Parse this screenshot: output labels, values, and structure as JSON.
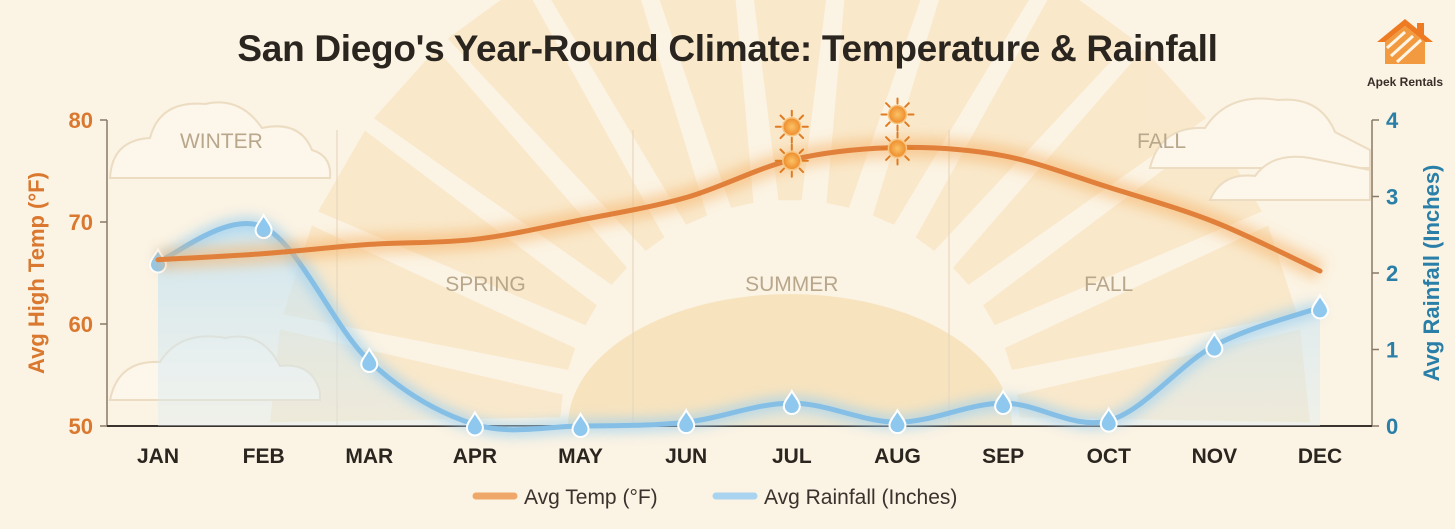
{
  "title": "San Diego's Year-Round Climate: Temperature & Rainfall",
  "brand": {
    "name": "Apek Rentals",
    "logo_icon": "house-roof-icon"
  },
  "colors": {
    "temperature": "#e0803a",
    "rainfall": "#86bfe6",
    "left_axis": "#d9782e",
    "right_axis": "#2a7fa8",
    "background": "#fbf3e3"
  },
  "chart_data": {
    "type": "line",
    "title": "San Diego's Year-Round Climate: Temperature & Rainfall",
    "categories": [
      "JAN",
      "FEB",
      "MAR",
      "APR",
      "MAY",
      "JUN",
      "JUL",
      "AUG",
      "SEP",
      "OCT",
      "NOV",
      "DEC"
    ],
    "series": [
      {
        "name": "Avg Temp (°F)",
        "axis": "left",
        "values": [
          66.3,
          66.9,
          67.8,
          68.3,
          70.2,
          72.4,
          76.1,
          77.3,
          76.5,
          73.4,
          70.0,
          65.2
        ]
      },
      {
        "name": "Avg Rainfall (Inches)",
        "axis": "right",
        "values": [
          2.15,
          2.6,
          0.85,
          0.02,
          0.0,
          0.05,
          0.3,
          0.05,
          0.3,
          0.07,
          1.05,
          1.55
        ]
      }
    ],
    "y_left": {
      "label": "Avg High Temp (°F)",
      "min": 50,
      "max": 80,
      "ticks": [
        50,
        60,
        70,
        80
      ]
    },
    "y_right": {
      "label": "Avg Rainfall (Inches)",
      "min": 0,
      "max": 4,
      "ticks": [
        0,
        1,
        2,
        3,
        4
      ]
    },
    "season_labels": [
      {
        "text": "WINTER",
        "anchor_month": 0.6,
        "row": "top"
      },
      {
        "text": "SPRING",
        "anchor_month": 3.1,
        "row": "mid"
      },
      {
        "text": "SUMMER",
        "anchor_month": 6.0,
        "row": "mid"
      },
      {
        "text": "FALL",
        "anchor_month": 9.0,
        "row": "mid"
      },
      {
        "text": "FALL",
        "anchor_month": 9.5,
        "row": "top"
      }
    ],
    "sun_markers": [
      "JUL",
      "AUG"
    ],
    "legend": {
      "position": "bottom-center",
      "entries": [
        "Avg Temp (°F)",
        "Avg Rainfall (Inches)"
      ]
    }
  }
}
